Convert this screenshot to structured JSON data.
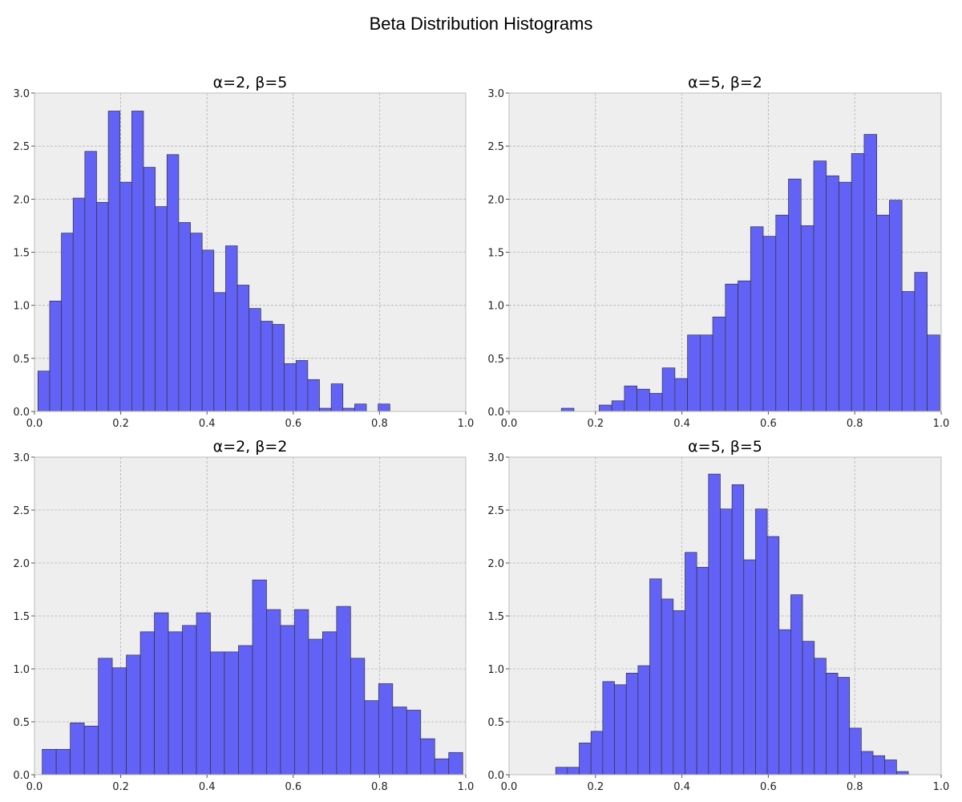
{
  "figure": {
    "title": "Beta Distribution Histograms"
  },
  "colors": {
    "bar_fill": "#6262f7",
    "bar_edge": "#333333",
    "plot_bg": "#eeeeee",
    "grid": "#b2b2b2"
  },
  "chart_data": [
    {
      "type": "bar",
      "title": "α=2, β=5",
      "xlim": [
        0,
        1
      ],
      "ylim": [
        0,
        3
      ],
      "xticks": [
        "0.0",
        "0.2",
        "0.4",
        "0.6",
        "0.8",
        "1.0"
      ],
      "yticks": [
        "0.0",
        "0.5",
        "1.0",
        "1.5",
        "2.0",
        "2.5",
        "3.0"
      ],
      "grid": true,
      "bin_start": 0.008,
      "bin_width": 0.0272,
      "values": [
        0.38,
        1.04,
        1.68,
        2.01,
        2.45,
        1.97,
        2.83,
        2.16,
        2.83,
        2.3,
        1.93,
        2.42,
        1.78,
        1.68,
        1.52,
        1.12,
        1.56,
        1.19,
        0.97,
        0.85,
        0.82,
        0.45,
        0.48,
        0.3,
        0.03,
        0.26,
        0.03,
        0.07,
        0.0,
        0.07
      ]
    },
    {
      "type": "bar",
      "title": "α=5, β=2",
      "xlim": [
        0,
        1
      ],
      "ylim": [
        0,
        3
      ],
      "xticks": [
        "0.0",
        "0.2",
        "0.4",
        "0.6",
        "0.8",
        "1.0"
      ],
      "yticks": [
        "0.0",
        "0.5",
        "1.0",
        "1.5",
        "2.0",
        "2.5",
        "3.0"
      ],
      "grid": true,
      "bin_start": 0.121,
      "bin_width": 0.0292,
      "values": [
        0.03,
        0.0,
        0.0,
        0.06,
        0.1,
        0.24,
        0.21,
        0.17,
        0.41,
        0.31,
        0.72,
        0.72,
        0.89,
        1.2,
        1.23,
        1.74,
        1.65,
        1.85,
        2.19,
        1.75,
        2.36,
        2.22,
        2.16,
        2.43,
        2.61,
        1.85,
        1.99,
        1.13,
        1.31,
        0.72
      ]
    },
    {
      "type": "bar",
      "title": "α=2, β=2",
      "xlim": [
        0,
        1
      ],
      "ylim": [
        0,
        3
      ],
      "xticks": [
        "0.0",
        "0.2",
        "0.4",
        "0.6",
        "0.8",
        "1.0"
      ],
      "yticks": [
        "0.0",
        "0.5",
        "1.0",
        "1.5",
        "2.0",
        "2.5",
        "3.0"
      ],
      "grid": true,
      "bin_start": 0.018,
      "bin_width": 0.0325,
      "values": [
        0.24,
        0.24,
        0.49,
        0.46,
        1.1,
        1.01,
        1.13,
        1.35,
        1.53,
        1.35,
        1.41,
        1.53,
        1.16,
        1.16,
        1.22,
        1.84,
        1.56,
        1.41,
        1.56,
        1.28,
        1.35,
        1.59,
        1.1,
        0.7,
        0.86,
        0.64,
        0.61,
        0.34,
        0.15,
        0.21
      ]
    },
    {
      "type": "bar",
      "title": "α=5, β=5",
      "xlim": [
        0,
        1
      ],
      "ylim": [
        0,
        3
      ],
      "xticks": [
        "0.0",
        "0.2",
        "0.4",
        "0.6",
        "0.8",
        "1.0"
      ],
      "yticks": [
        "0.0",
        "0.5",
        "1.0",
        "1.5",
        "2.0",
        "2.5",
        "3.0"
      ],
      "grid": true,
      "bin_start": 0.108,
      "bin_width": 0.0272,
      "values": [
        0.07,
        0.07,
        0.3,
        0.41,
        0.88,
        0.85,
        0.96,
        1.03,
        1.85,
        1.66,
        1.55,
        2.1,
        1.96,
        2.84,
        2.51,
        2.74,
        2.03,
        2.51,
        2.25,
        1.37,
        1.7,
        1.26,
        1.1,
        0.96,
        0.92,
        0.44,
        0.22,
        0.18,
        0.14,
        0.03
      ]
    }
  ]
}
